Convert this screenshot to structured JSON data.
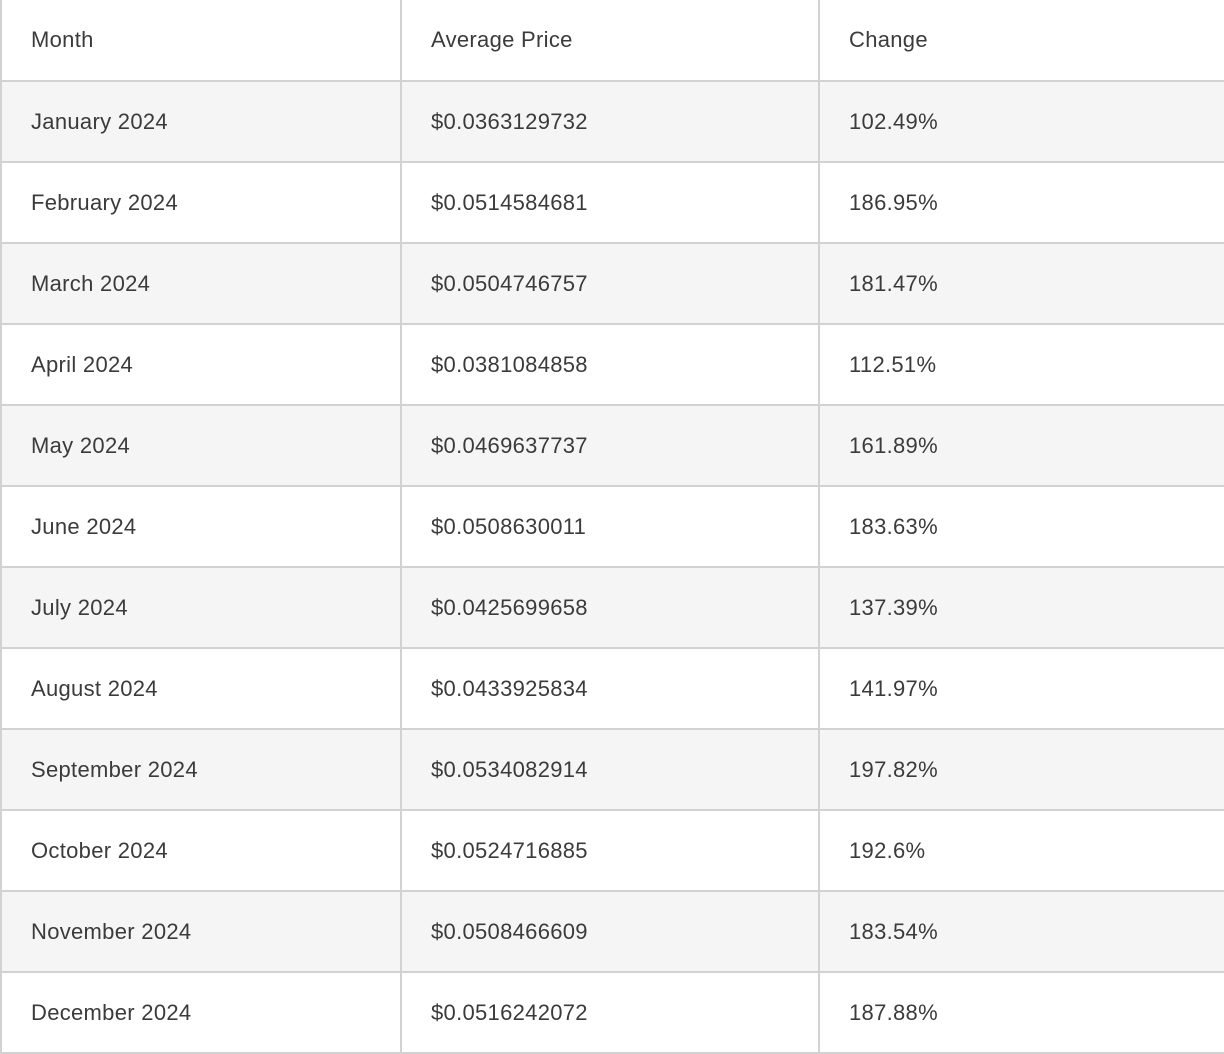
{
  "colors": {
    "border": "#d2d2d2",
    "stripe_bg": "#f5f5f5",
    "row_bg": "#ffffff",
    "text": "#3b3b3b"
  },
  "chart_data": {
    "type": "table",
    "columns": [
      "Month",
      "Average Price",
      "Change"
    ],
    "rows": [
      {
        "month": "January 2024",
        "average_price": "$0.0363129732",
        "change": "102.49%"
      },
      {
        "month": "February 2024",
        "average_price": "$0.0514584681",
        "change": "186.95%"
      },
      {
        "month": "March 2024",
        "average_price": "$0.0504746757",
        "change": "181.47%"
      },
      {
        "month": "April 2024",
        "average_price": "$0.0381084858",
        "change": "112.51%"
      },
      {
        "month": "May 2024",
        "average_price": "$0.0469637737",
        "change": "161.89%"
      },
      {
        "month": "June 2024",
        "average_price": "$0.0508630011",
        "change": "183.63%"
      },
      {
        "month": "July 2024",
        "average_price": "$0.0425699658",
        "change": "137.39%"
      },
      {
        "month": "August 2024",
        "average_price": "$0.0433925834",
        "change": "141.97%"
      },
      {
        "month": "September 2024",
        "average_price": "$0.0534082914",
        "change": "197.82%"
      },
      {
        "month": "October 2024",
        "average_price": "$0.0524716885",
        "change": "192.6%"
      },
      {
        "month": "November 2024",
        "average_price": "$0.0508466609",
        "change": "183.54%"
      },
      {
        "month": "December 2024",
        "average_price": "$0.0516242072",
        "change": "187.88%"
      }
    ],
    "values": {
      "average_price_usd": [
        0.0363129732,
        0.0514584681,
        0.0504746757,
        0.0381084858,
        0.0469637737,
        0.0508630011,
        0.0425699658,
        0.0433925834,
        0.0534082914,
        0.0524716885,
        0.0508466609,
        0.0516242072
      ],
      "change_percent": [
        102.49,
        186.95,
        181.47,
        112.51,
        161.89,
        183.63,
        137.39,
        141.97,
        197.82,
        192.6,
        183.54,
        187.88
      ]
    }
  }
}
